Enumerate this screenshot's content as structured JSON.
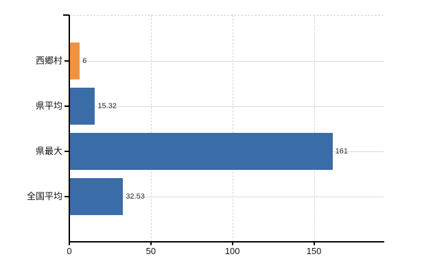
{
  "chart_data": {
    "type": "bar",
    "orientation": "horizontal",
    "title": "",
    "xlabel": "",
    "ylabel": "",
    "categories": [
      "西郷村",
      "県平均",
      "県最大",
      "全国平均"
    ],
    "values": [
      6,
      15.32,
      161,
      32.53
    ],
    "value_labels": [
      "6",
      "15.32",
      "161",
      "32.53"
    ],
    "bar_colors": [
      "#ef9340",
      "#3a6ca8",
      "#3a6ca8",
      "#3a6ca8"
    ],
    "x_tick_labels": [
      "0",
      "50",
      "100",
      "150"
    ],
    "x_tick_values": [
      0,
      50,
      100,
      150
    ],
    "xlim": [
      0,
      192.7
    ],
    "legend": "none",
    "grid": {
      "horizontal_style": "solid",
      "horizontal_color": "#d6ddd6",
      "vertical_style": "dashed",
      "vertical_color": "#d6d2d8",
      "top_border_style": "dashed"
    },
    "axis_color": "#000000",
    "value_label_color": "#2b2b2b",
    "tick_label_color": "#111111"
  }
}
